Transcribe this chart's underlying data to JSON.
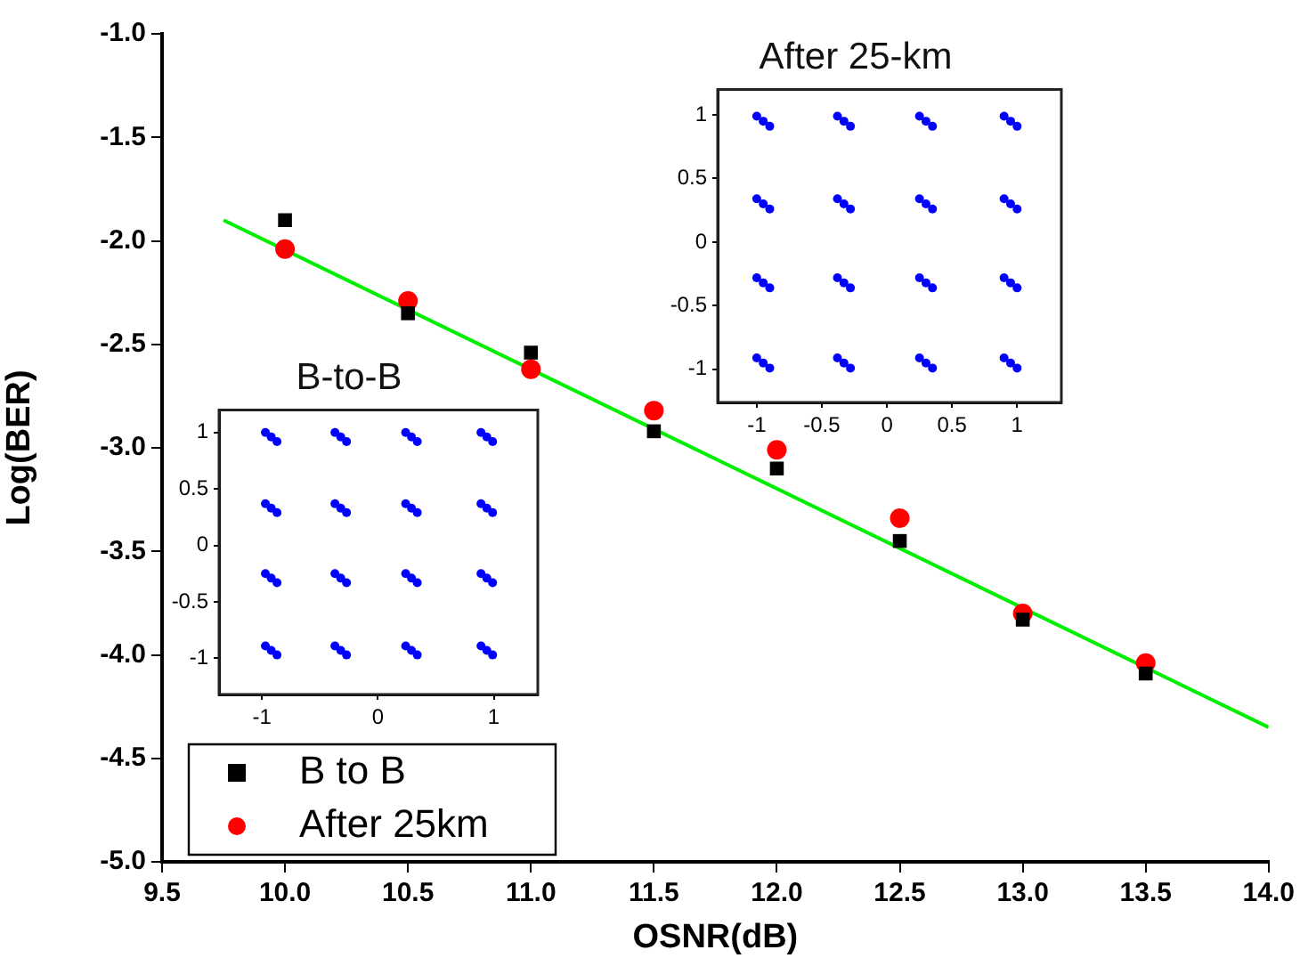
{
  "chart_data": [
    {
      "type": "scatter",
      "xlabel": "OSNR(dB)",
      "ylabel": "Log(BER)",
      "xlim": [
        9.5,
        14.0
      ],
      "ylim": [
        -5.0,
        -1.0
      ],
      "xticks": [
        {
          "value": 9.5,
          "label": "9.5"
        },
        {
          "value": 10,
          "label": "10.0"
        },
        {
          "value": 10.5,
          "label": "10.5"
        },
        {
          "value": 11,
          "label": "11.0"
        },
        {
          "value": 11.5,
          "label": "11.5"
        },
        {
          "value": 12,
          "label": "12.0"
        },
        {
          "value": 12.5,
          "label": "12.5"
        },
        {
          "value": 13,
          "label": "13.0"
        },
        {
          "value": 13.5,
          "label": "13.5"
        },
        {
          "value": 14,
          "label": "14.0"
        }
      ],
      "yticks": [
        {
          "value": -1,
          "label": "-1.0"
        },
        {
          "value": -1.5,
          "label": "-1.5"
        },
        {
          "value": -2,
          "label": "-2.0"
        },
        {
          "value": -2.5,
          "label": "-2.5"
        },
        {
          "value": -3,
          "label": "-3.0"
        },
        {
          "value": -3.5,
          "label": "-3.5"
        },
        {
          "value": -4,
          "label": "-4.0"
        },
        {
          "value": -4.5,
          "label": "-4.5"
        },
        {
          "value": -5,
          "label": "-5.0"
        }
      ],
      "x": [
        10,
        10.5,
        11,
        11.5,
        12,
        12.5,
        13,
        13.5
      ],
      "legend": "bottom left",
      "series": [
        {
          "name": "B to B",
          "color": "#000000",
          "marker": "square",
          "values": [
            -1.9,
            -2.35,
            -2.54,
            -2.92,
            -3.1,
            -3.45,
            -3.83,
            -4.09
          ]
        },
        {
          "name": "After 25km",
          "color": "#ff0000",
          "marker": "circle",
          "values": [
            -2.04,
            -2.29,
            -2.62,
            -2.82,
            -3.01,
            -3.34,
            -3.8,
            -4.04
          ]
        },
        {
          "type": "line",
          "color": "#00ee00",
          "marker": "none",
          "x": [
            9.75,
            14.0
          ],
          "values": [
            -1.9,
            -4.35
          ]
        }
      ]
    },
    {
      "type": "scatter",
      "title": "After 25-km",
      "xlim": [
        -1.3,
        1.34
      ],
      "ylim": [
        -1.26,
        1.2
      ],
      "xticks": [
        -1,
        -0.5,
        0,
        0.5,
        1
      ],
      "yticks": [
        -1,
        -0.5,
        0,
        0.5,
        1
      ],
      "marker": "circle",
      "series": [
        {
          "color": "#0000ff",
          "x": [
            -0.95,
            -1.0,
            -0.9,
            -0.33,
            -0.38,
            -0.28,
            0.3,
            0.25,
            0.35,
            0.95,
            0.9,
            1.0,
            -0.95,
            -1.0,
            -0.9,
            -0.33,
            -0.38,
            -0.28,
            0.3,
            0.25,
            0.35,
            0.95,
            0.9,
            1.0,
            -0.95,
            -1.0,
            -0.9,
            -0.33,
            -0.38,
            -0.28,
            0.3,
            0.25,
            0.35,
            0.95,
            0.9,
            1.0,
            -0.95,
            -1.0,
            -0.9,
            -0.33,
            -0.38,
            -0.28,
            0.3,
            0.25,
            0.35,
            0.95,
            0.9,
            1.0
          ],
          "values": [
            0.95,
            0.99,
            0.91,
            0.95,
            0.99,
            0.91,
            0.95,
            0.99,
            0.91,
            0.95,
            0.99,
            0.91,
            0.3,
            0.34,
            0.26,
            0.3,
            0.34,
            0.26,
            0.3,
            0.34,
            0.26,
            0.3,
            0.34,
            0.26,
            -0.32,
            -0.28,
            -0.36,
            -0.32,
            -0.28,
            -0.36,
            -0.32,
            -0.28,
            -0.36,
            -0.32,
            -0.28,
            -0.36,
            -0.95,
            -0.91,
            -0.99,
            -0.95,
            -0.91,
            -0.99,
            -0.95,
            -0.91,
            -0.99,
            -0.95,
            -0.91,
            -0.99
          ]
        }
      ]
    },
    {
      "type": "scatter",
      "title": "B-to-B",
      "xlim": [
        -1.37,
        1.38
      ],
      "ylim": [
        -1.32,
        1.2
      ],
      "xticks": [
        -1,
        0,
        1
      ],
      "yticks": [
        -1,
        -0.5,
        0,
        0.5,
        1
      ],
      "marker": "circle",
      "series": [
        {
          "color": "#0000ff",
          "x": [
            -0.92,
            -0.97,
            -0.87,
            -0.32,
            -0.37,
            -0.27,
            0.29,
            0.24,
            0.34,
            0.94,
            0.89,
            0.99,
            -0.92,
            -0.97,
            -0.87,
            -0.32,
            -0.37,
            -0.27,
            0.29,
            0.24,
            0.34,
            0.94,
            0.89,
            0.99,
            -0.92,
            -0.97,
            -0.87,
            -0.32,
            -0.37,
            -0.27,
            0.29,
            0.24,
            0.34,
            0.94,
            0.89,
            0.99,
            -0.92,
            -0.97,
            -0.87,
            -0.32,
            -0.37,
            -0.27,
            0.29,
            0.24,
            0.34,
            0.94,
            0.89,
            0.99
          ],
          "values": [
            0.96,
            1.0,
            0.92,
            0.96,
            1.0,
            0.92,
            0.96,
            1.0,
            0.92,
            0.96,
            1.0,
            0.92,
            0.33,
            0.37,
            0.29,
            0.33,
            0.37,
            0.29,
            0.33,
            0.37,
            0.29,
            0.33,
            0.37,
            0.29,
            -0.29,
            -0.25,
            -0.33,
            -0.29,
            -0.25,
            -0.33,
            -0.29,
            -0.25,
            -0.33,
            -0.29,
            -0.25,
            -0.33,
            -0.93,
            -0.89,
            -0.97,
            -0.93,
            -0.89,
            -0.97,
            -0.93,
            -0.89,
            -0.97,
            -0.93,
            -0.89,
            -0.97
          ]
        }
      ]
    }
  ]
}
